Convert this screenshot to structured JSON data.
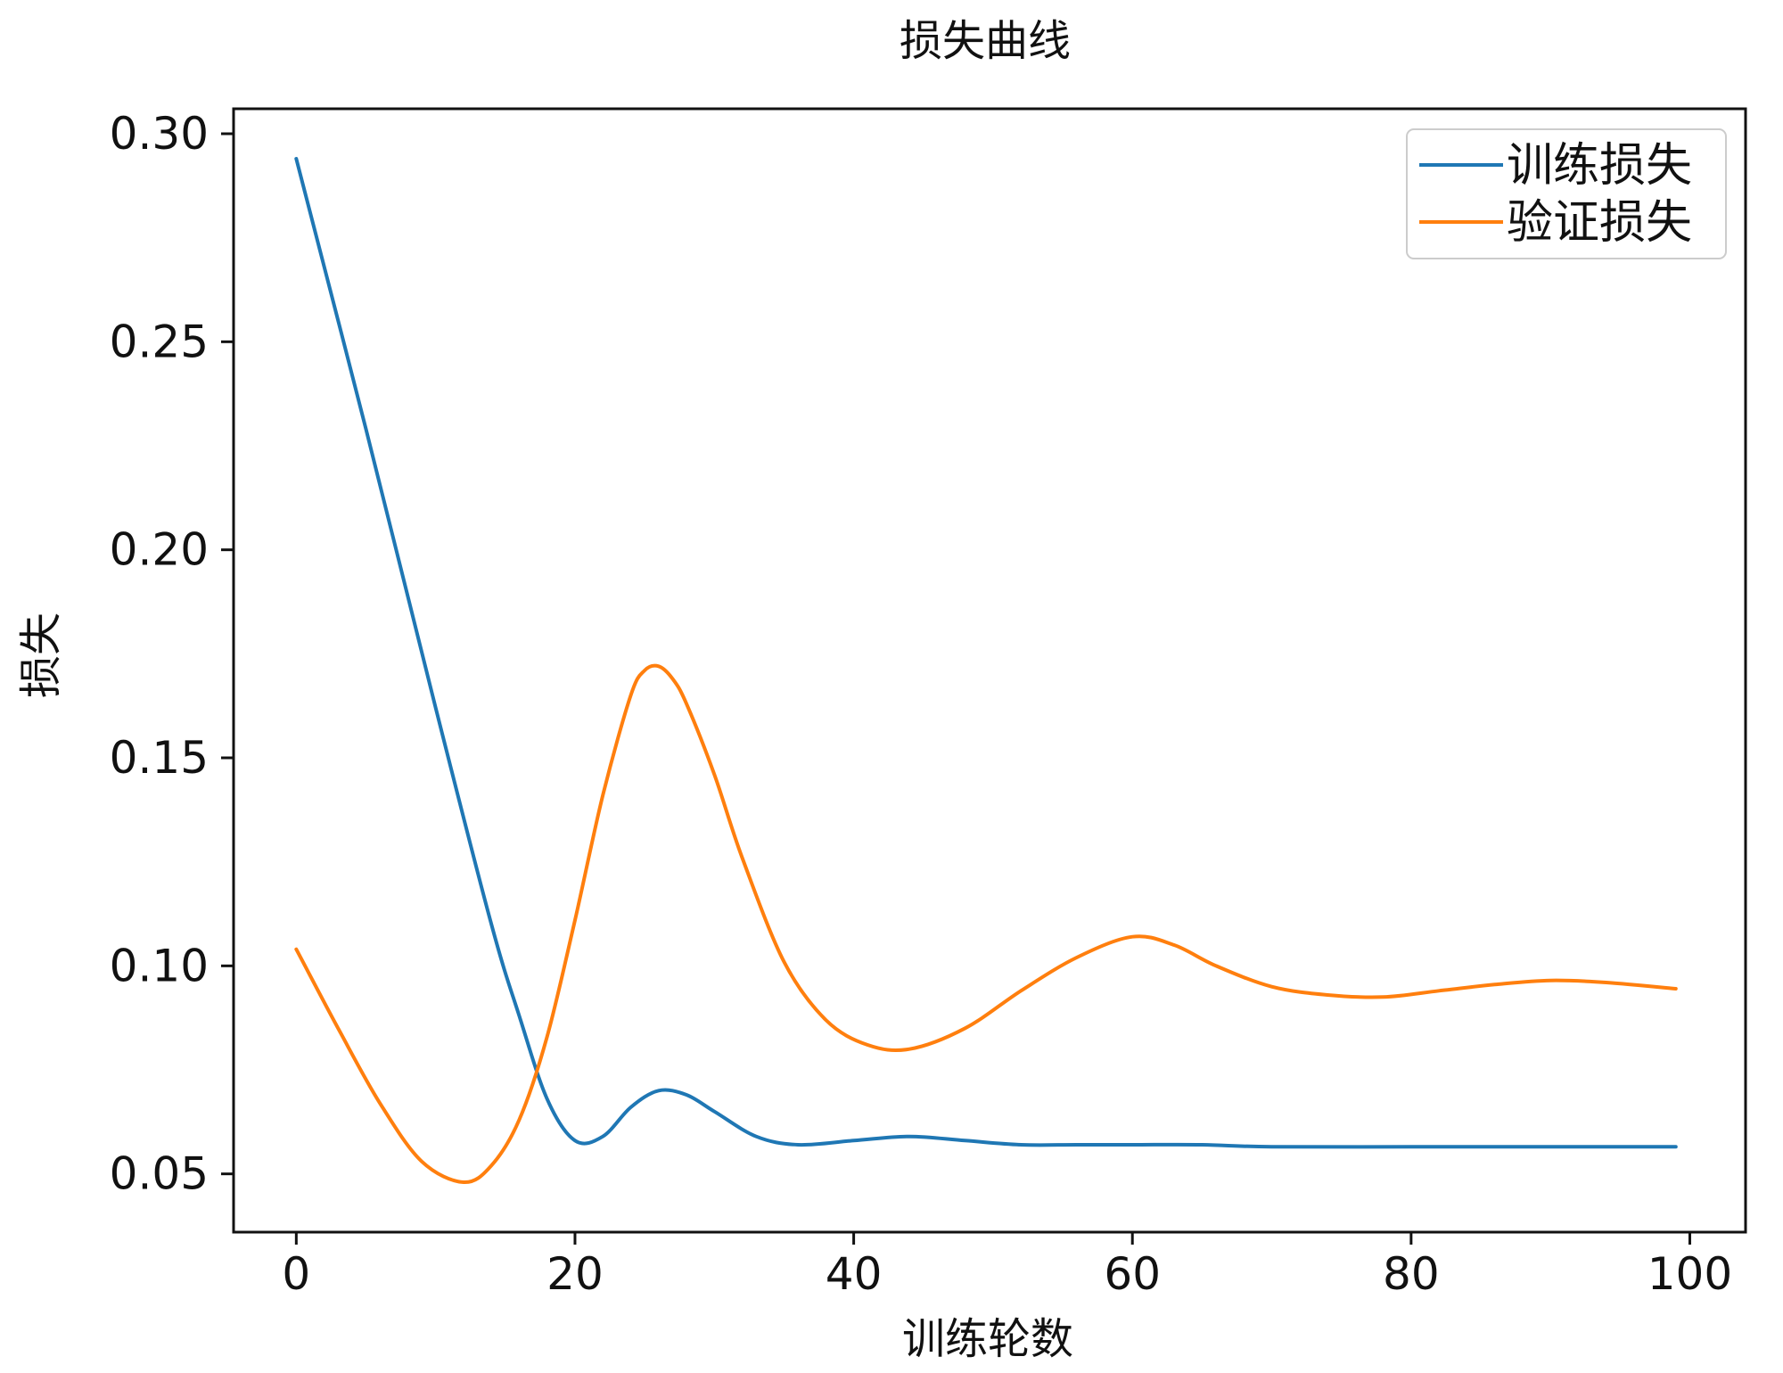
{
  "chart_data": {
    "type": "line",
    "title": "损失曲线",
    "xlabel": "训练轮数",
    "ylabel": "损失",
    "xlim": [
      -4.5,
      104
    ],
    "ylim": [
      0.036,
      0.306
    ],
    "xticks": [
      0,
      20,
      40,
      60,
      80,
      100
    ],
    "yticks": [
      0.05,
      0.1,
      0.15,
      0.2,
      0.25,
      0.3
    ],
    "xtick_labels": [
      "0",
      "20",
      "40",
      "60",
      "80",
      "100"
    ],
    "ytick_labels": [
      "0.05",
      "0.10",
      "0.15",
      "0.20",
      "0.25",
      "0.30"
    ],
    "grid": false,
    "legend_position": "top-right",
    "series": [
      {
        "name": "训练损失",
        "color": "#1f77b4",
        "x": [
          0,
          5,
          10,
          14,
          16,
          18,
          20,
          22,
          24,
          26,
          28,
          30,
          33,
          36,
          40,
          44,
          48,
          52,
          56,
          60,
          65,
          70,
          80,
          90,
          99
        ],
        "y": [
          0.294,
          0.229,
          0.162,
          0.11,
          0.088,
          0.068,
          0.058,
          0.059,
          0.066,
          0.07,
          0.069,
          0.065,
          0.059,
          0.057,
          0.058,
          0.059,
          0.058,
          0.057,
          0.057,
          0.057,
          0.057,
          0.0565,
          0.0565,
          0.0565,
          0.0565
        ]
      },
      {
        "name": "验证损失",
        "color": "#ff7f0e",
        "x": [
          0,
          3,
          6,
          9,
          12,
          14,
          16,
          18,
          20,
          22,
          24,
          25,
          26,
          27,
          28,
          30,
          32,
          35,
          38,
          41,
          44,
          48,
          52,
          56,
          60,
          63,
          66,
          70,
          74,
          78,
          82,
          86,
          90,
          94,
          99
        ],
        "y": [
          0.104,
          0.085,
          0.067,
          0.053,
          0.048,
          0.052,
          0.063,
          0.083,
          0.111,
          0.141,
          0.165,
          0.171,
          0.172,
          0.169,
          0.163,
          0.146,
          0.126,
          0.101,
          0.087,
          0.081,
          0.08,
          0.085,
          0.094,
          0.102,
          0.107,
          0.105,
          0.1,
          0.095,
          0.093,
          0.0925,
          0.094,
          0.0955,
          0.0965,
          0.096,
          0.0945
        ]
      }
    ]
  }
}
